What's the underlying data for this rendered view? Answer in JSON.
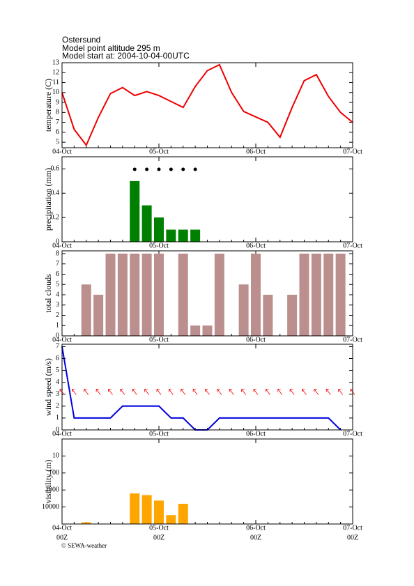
{
  "header": {
    "title": "Ostersund",
    "altitude": "Model point altitude  295 m",
    "start": "Model start at: 2004-10-04-00UTC"
  },
  "chart_data": [
    {
      "type": "line",
      "y_label": "temperature (C)",
      "color": "#ee0000",
      "x": [
        0,
        3,
        6,
        9,
        12,
        15,
        18,
        21,
        24,
        27,
        30,
        33,
        36,
        39,
        42,
        45,
        48,
        51,
        54,
        57,
        60,
        63,
        66,
        69,
        72
      ],
      "values": [
        10,
        6.3,
        4.7,
        7.5,
        9.9,
        10.5,
        9.7,
        10.1,
        9.7,
        9.1,
        8.5,
        10.6,
        12.2,
        12.8,
        10,
        8.1,
        7.55,
        7,
        5.5,
        8.5,
        11.2,
        11.8,
        9.6,
        8,
        7
      ],
      "xlim": [
        0,
        72
      ],
      "xticks": [
        {
          "value": 0,
          "label": "04-Oct"
        },
        {
          "value": 24,
          "label": "05-Oct"
        },
        {
          "value": 48,
          "label": "06-Oct"
        },
        {
          "value": 72,
          "label": "07-Oct"
        }
      ],
      "ylim": [
        4.45,
        13
      ],
      "yticks": [
        5,
        6,
        7,
        8,
        9,
        10,
        11,
        12,
        13
      ]
    },
    {
      "type": "bar",
      "y_label": "precipitation (mm)",
      "color": "#008000",
      "x": [
        0,
        3,
        6,
        9,
        12,
        15,
        18,
        21,
        24,
        27,
        30,
        33,
        36,
        39,
        42,
        45,
        48,
        51,
        54,
        57,
        60,
        63,
        66,
        69,
        72
      ],
      "values": [
        0,
        0,
        0,
        0,
        0,
        0,
        0.5,
        0.3,
        0.2,
        0.1,
        0.1,
        0.1,
        0,
        0,
        0,
        0,
        0,
        0,
        0,
        0,
        0,
        0,
        0,
        0,
        0
      ],
      "xlim": [
        0,
        72
      ],
      "xticks": [
        {
          "value": 0,
          "label": "04-Oct"
        },
        {
          "value": 24,
          "label": "05-Oct"
        },
        {
          "value": 48,
          "label": "06-Oct"
        },
        {
          "value": 72,
          "label": "07-Oct"
        }
      ],
      "ylim": [
        0,
        0.7
      ],
      "yticks": [
        0,
        0.2,
        0.4,
        0.6
      ]
    },
    {
      "type": "bar",
      "y_label": "total clouds",
      "color": "#bc8f8f",
      "x": [
        0,
        3,
        6,
        9,
        12,
        15,
        18,
        21,
        24,
        27,
        30,
        33,
        36,
        39,
        42,
        45,
        48,
        51,
        54,
        57,
        60,
        63,
        66,
        69,
        72
      ],
      "values": [
        0,
        0,
        5,
        4,
        8,
        8,
        8,
        8,
        8,
        0,
        8,
        1,
        1,
        8,
        0,
        5,
        8,
        4,
        0,
        4,
        8,
        8,
        8,
        8,
        0
      ],
      "xlim": [
        0,
        72
      ],
      "xticks": [
        {
          "value": 0,
          "label": "04-Oct"
        },
        {
          "value": 24,
          "label": "05-Oct"
        },
        {
          "value": 48,
          "label": "06-Oct"
        },
        {
          "value": 72,
          "label": "07-Oct"
        }
      ],
      "ylim": [
        0,
        8.27
      ],
      "yticks": [
        0,
        1,
        2,
        3,
        4,
        5,
        6,
        7,
        8
      ]
    },
    {
      "type": "line",
      "y_label": "wind speed (m/s)",
      "color": "#0000dd",
      "x": [
        0,
        3,
        6,
        9,
        12,
        15,
        18,
        21,
        24,
        27,
        30,
        33,
        36,
        39,
        42,
        45,
        48,
        51,
        54,
        57,
        60,
        63,
        66,
        69,
        72
      ],
      "values": [
        7,
        1,
        1,
        1,
        1,
        2,
        2,
        2,
        2,
        1,
        1,
        0,
        0,
        1,
        1,
        1,
        1,
        1,
        1,
        1,
        1,
        1,
        1,
        0,
        null
      ],
      "xlim": [
        0,
        72
      ],
      "xticks": [
        {
          "value": 0,
          "label": "04-Oct"
        },
        {
          "value": 24,
          "label": "05-Oct"
        },
        {
          "value": 48,
          "label": "06-Oct"
        },
        {
          "value": 72,
          "label": "07-Oct"
        }
      ],
      "ylim": [
        0,
        7.2
      ],
      "yticks": [
        0,
        1,
        2,
        3,
        4,
        5,
        6,
        7
      ]
    },
    {
      "type": "bar",
      "y_label": "visibility (m)",
      "color": "#ffa500",
      "log_scale": true,
      "inverted": true,
      "x": [
        0,
        3,
        6,
        9,
        12,
        15,
        18,
        21,
        24,
        27,
        30,
        33,
        36,
        39,
        42,
        45,
        48,
        51,
        54,
        57,
        60,
        63,
        66,
        69,
        72
      ],
      "values": [
        100000,
        100000,
        80000,
        100000,
        100000,
        100000,
        1600,
        2000,
        4200,
        30000,
        6500,
        100000,
        100000,
        100000,
        100000,
        100000,
        100000,
        100000,
        100000,
        100000,
        100000,
        100000,
        100000,
        100000,
        100000
      ],
      "xlim": [
        0,
        72
      ],
      "xticks": [
        {
          "value": 0,
          "label": "04-Oct"
        },
        {
          "value": 24,
          "label": "05-Oct"
        },
        {
          "value": 48,
          "label": "06-Oct"
        },
        {
          "value": 72,
          "label": "07-Oct"
        }
      ],
      "xtick_sublabels": [
        "00Z",
        "00Z",
        "00Z",
        "00Z"
      ],
      "ylim": [
        1,
        100000
      ],
      "yticks": [
        10,
        100,
        1000,
        10000
      ]
    }
  ],
  "footer": {
    "copyright": "© SEWA-weather"
  }
}
